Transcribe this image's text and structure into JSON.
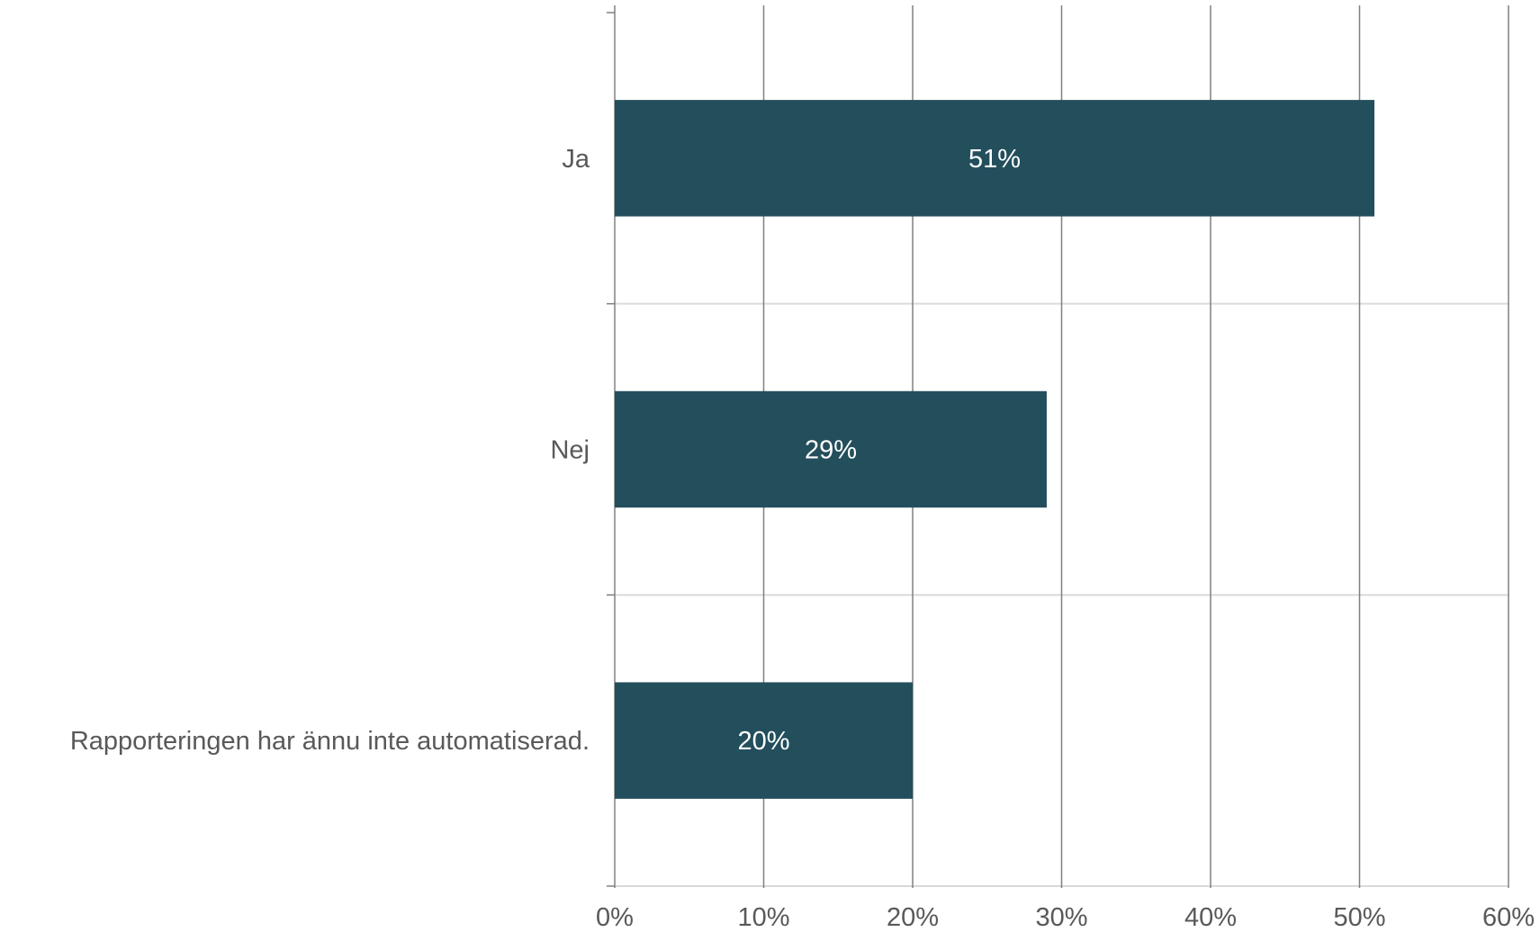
{
  "chart_data": {
    "type": "bar",
    "orientation": "horizontal",
    "categories": [
      "Ja",
      "Nej",
      "Rapporteringen har ännu inte automatiserad."
    ],
    "values": [
      51,
      29,
      20
    ],
    "data_labels": [
      "51%",
      "29%",
      "20%"
    ],
    "x_ticks": [
      0,
      10,
      20,
      30,
      40,
      50,
      60
    ],
    "x_tick_labels": [
      "0%",
      "10%",
      "20%",
      "30%",
      "40%",
      "50%",
      "60%"
    ],
    "xlim": [
      0,
      60
    ],
    "title": "",
    "xlabel": "",
    "ylabel": "",
    "grid": true,
    "legend": "none",
    "colors": {
      "bar": "#234E5C",
      "grid_vertical": "#808080",
      "grid_horizontal": "#D9D9D9",
      "text": "#595959",
      "data_label": "#FFFFFF"
    }
  }
}
